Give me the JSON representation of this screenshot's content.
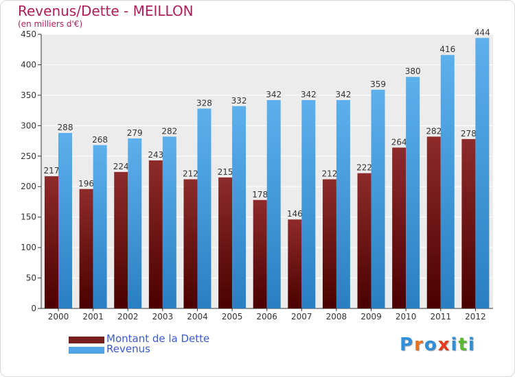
{
  "chart_data": {
    "type": "bar",
    "title": "Revenus/Dette - MEILLON",
    "subtitle": "(en milliers d'€)",
    "categories": [
      "2000",
      "2001",
      "2002",
      "2003",
      "2004",
      "2005",
      "2006",
      "2007",
      "2008",
      "2009",
      "2010",
      "2011",
      "2012"
    ],
    "series": [
      {
        "name": "Montant de la Dette",
        "color": "#7a1e1e",
        "values": [
          217,
          196,
          224,
          243,
          212,
          215,
          178,
          146,
          212,
          222,
          264,
          282,
          278
        ]
      },
      {
        "name": "Revenus",
        "color": "#4ea6e6",
        "values": [
          288,
          268,
          279,
          282,
          328,
          332,
          342,
          342,
          342,
          359,
          380,
          416,
          444
        ]
      }
    ],
    "ylim": [
      0,
      450
    ],
    "yticks": [
      0,
      50,
      100,
      150,
      200,
      250,
      300,
      350,
      400,
      450
    ],
    "grid": true,
    "legend_position": "bottom-left"
  },
  "logo": {
    "text": "Proxiti",
    "letter_colors": [
      "#2f8fd8",
      "#e8731c",
      "#2f8fd8",
      "#e83a1c",
      "#2f8fd8",
      "#5bb92f",
      "#2f8fd8"
    ]
  }
}
